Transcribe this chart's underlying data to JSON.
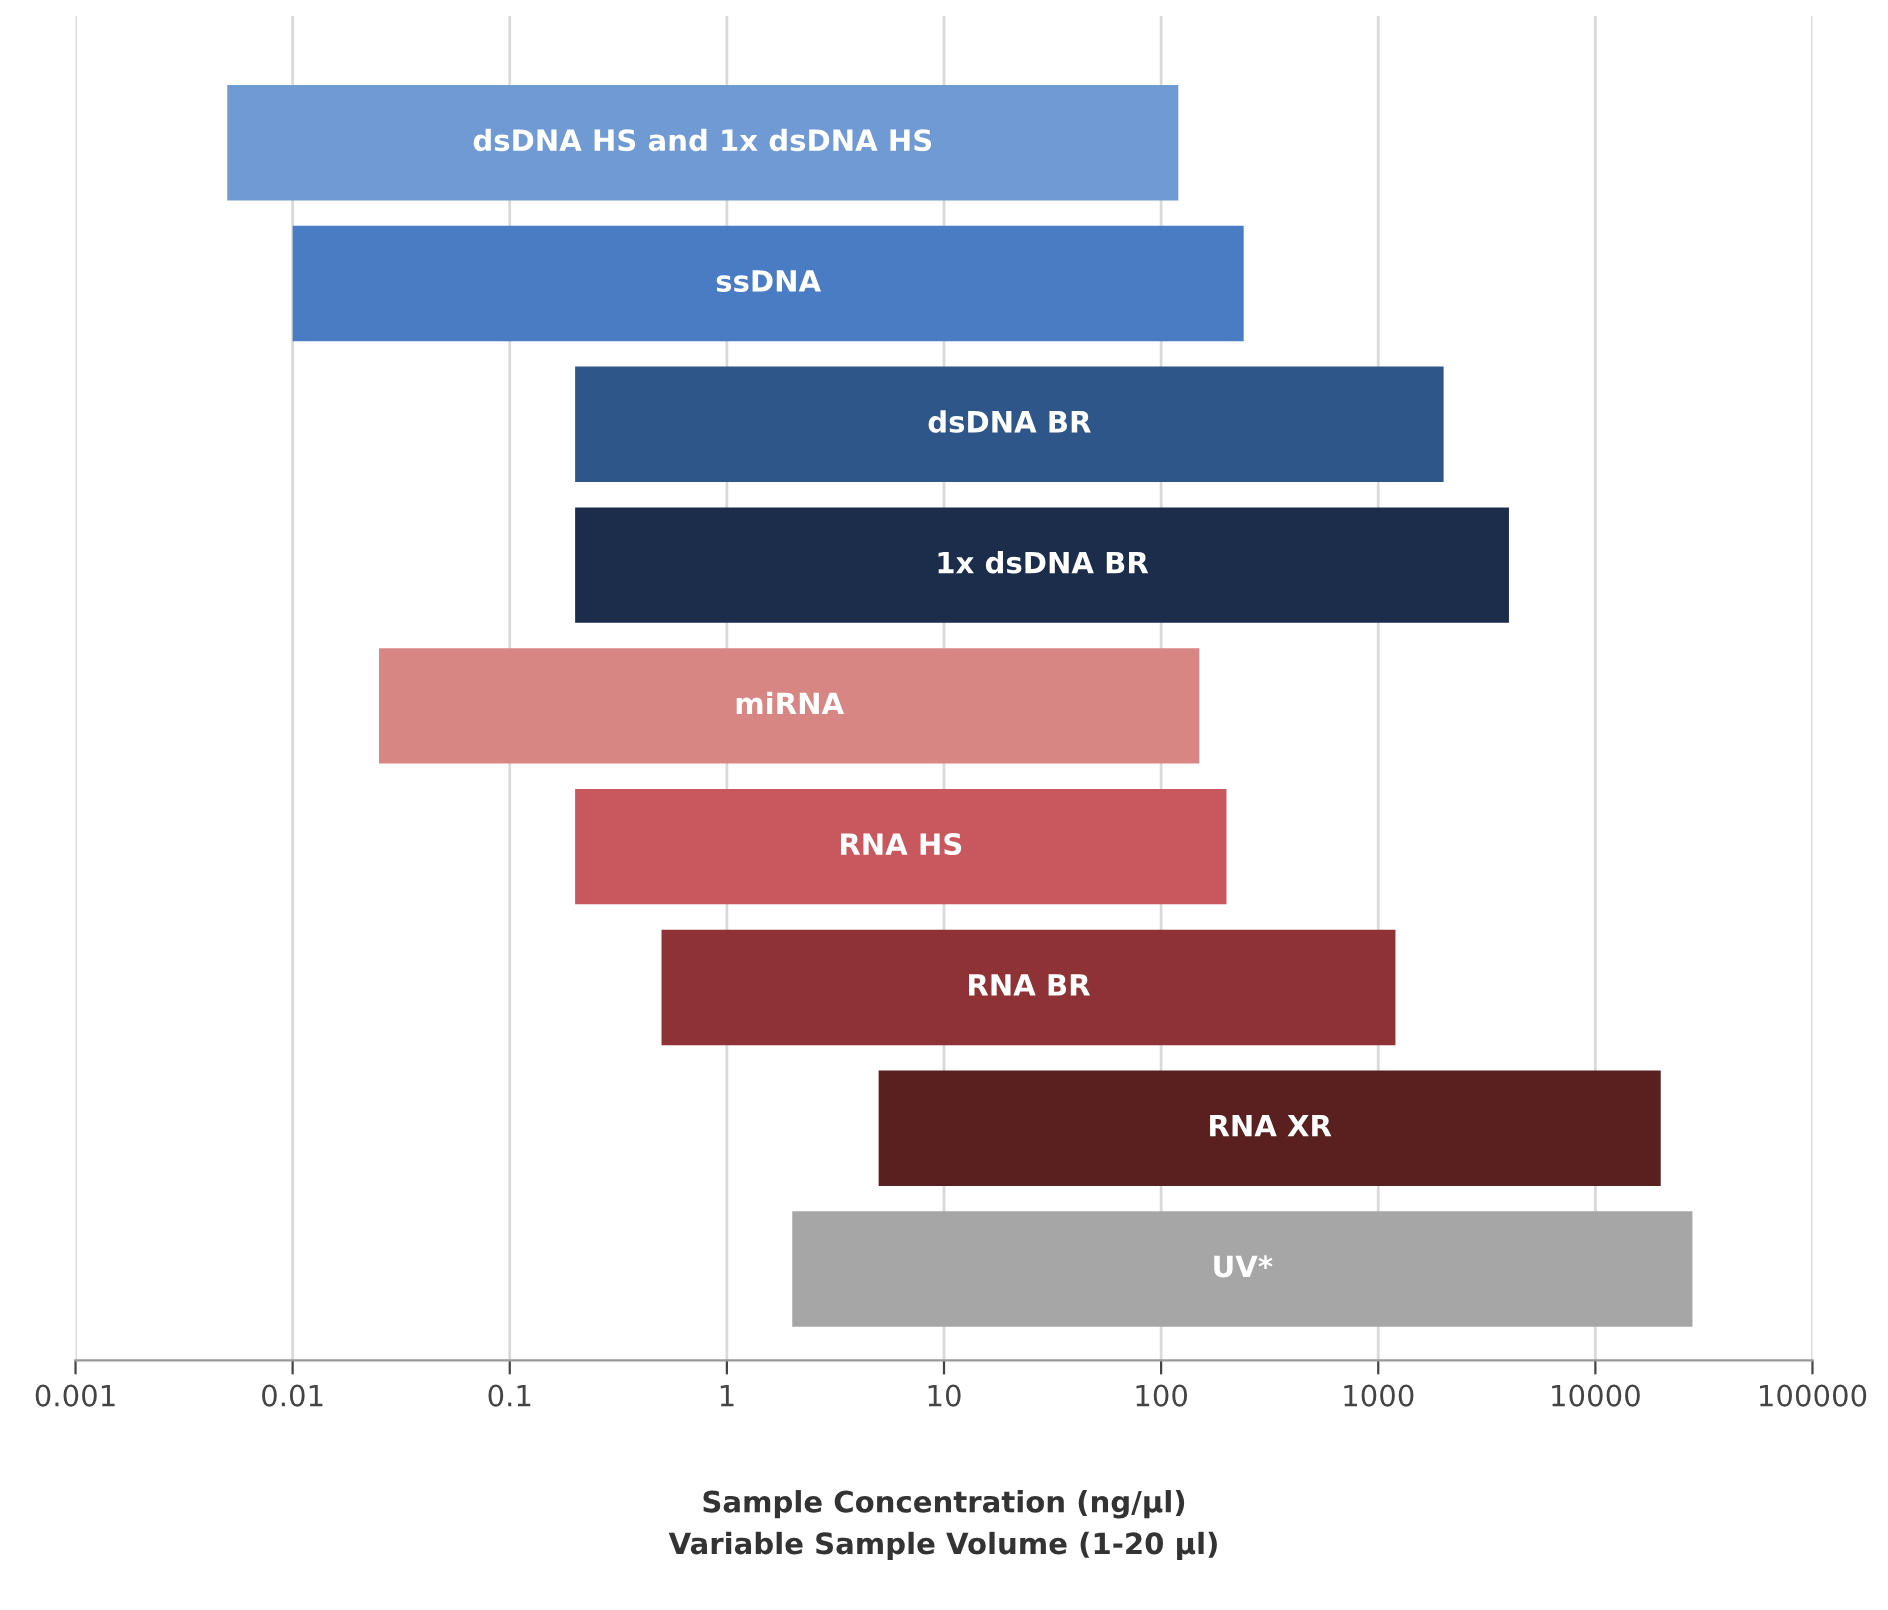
{
  "chart_data": {
    "type": "bar",
    "orientation": "horizontal",
    "log": "x",
    "categories": [
      "dsDNA HS and 1x dsDNA HS",
      "ssDNA",
      "dsDNA BR",
      "1x dsDNA BR",
      "miRNA",
      "RNA HS",
      "RNA BR",
      "RNA XR",
      "UV*"
    ],
    "base": [
      0.005,
      0.01,
      0.2,
      0.2,
      0.025,
      0.2,
      0.5,
      5,
      2
    ],
    "values": [
      119.995,
      239.99,
      1999.8,
      3999.8,
      149.975,
      199.8,
      1199.5,
      19995,
      27998
    ],
    "colors": [
      "#6f9ad3",
      "#4a7cc4",
      "#2f5689",
      "#1c2d4b",
      "#d88683",
      "#c8585d",
      "#8f3235",
      "#5a1f1f",
      "#a6a6a6"
    ],
    "xlim": [
      0.001,
      100000
    ],
    "xticks": [
      0.001,
      0.01,
      0.1,
      1,
      10,
      100,
      1000,
      10000,
      100000
    ],
    "xlabel": "Sample Concentration (ng/µl)\nVariable Sample Volume (1-20 µl)",
    "grid": "x"
  }
}
